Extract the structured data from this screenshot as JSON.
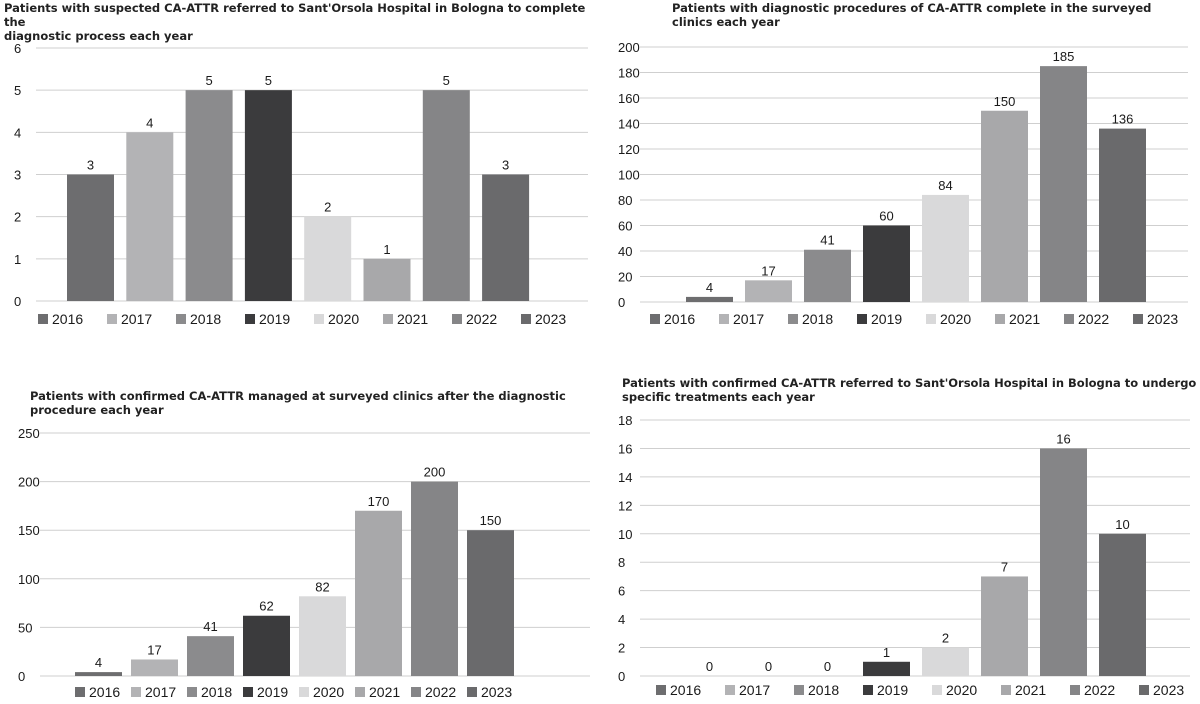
{
  "colors": {
    "2016": "#6d6d6f",
    "2017": "#b3b3b5",
    "2018": "#8b8b8d",
    "2019": "#3b3b3d",
    "2020": "#d9d9da",
    "2021": "#a8a8aa",
    "2022": "#858587",
    "2023": "#6a6a6c",
    "grid": "#cfcfcf",
    "text": "#1a1a1a"
  },
  "chart_data": [
    {
      "type": "bar",
      "title": "Patients with suspected CA-ATTR referred to Sant'Orsola Hospital in Bologna to complete the\ndiagnostic process  each year",
      "categories": [
        "2016",
        "2017",
        "2018",
        "2019",
        "2020",
        "2021",
        "2022",
        "2023"
      ],
      "values": [
        3,
        4,
        5,
        5,
        2,
        1,
        5,
        3
      ],
      "data_labels": [
        "3",
        "4",
        "5",
        "5",
        "2",
        "1",
        "5",
        "3"
      ],
      "ylim": [
        0,
        6
      ],
      "yticks": [
        0,
        1,
        2,
        3,
        4,
        5,
        6
      ],
      "legend": [
        "2016",
        "2017",
        "2018",
        "2019",
        "2020",
        "2021",
        "2022",
        "2023"
      ],
      "legend_position": "bottom",
      "grid": true
    },
    {
      "type": "bar",
      "title": "Patients with diagnostic procedures of CA-ATTR complete in the surveyed\nclinics each year",
      "categories": [
        "2016",
        "2017",
        "2018",
        "2019",
        "2020",
        "2021",
        "2022",
        "2023"
      ],
      "values": [
        4,
        17,
        41,
        60,
        84,
        150,
        185,
        136
      ],
      "data_labels": [
        "4",
        "17",
        "41",
        "60",
        "84",
        "150",
        "185",
        "136"
      ],
      "ylim": [
        0,
        200
      ],
      "yticks": [
        0,
        20,
        40,
        60,
        80,
        100,
        120,
        140,
        160,
        180,
        200
      ],
      "legend": [
        "2016",
        "2017",
        "2018",
        "2019",
        "2020",
        "2021",
        "2022",
        "2023"
      ],
      "legend_position": "bottom",
      "grid": true
    },
    {
      "type": "bar",
      "title": "Patients with confirmed CA-ATTR managed at surveyed clinics after the diagnostic\nprocedure each year",
      "categories": [
        "2016",
        "2017",
        "2018",
        "2019",
        "2020",
        "2021",
        "2022",
        "2023"
      ],
      "values": [
        4,
        17,
        41,
        62,
        82,
        170,
        200,
        150
      ],
      "data_labels": [
        "4",
        "17",
        "41",
        "62",
        "82",
        "170",
        "200",
        "150"
      ],
      "ylim": [
        0,
        250
      ],
      "yticks": [
        0,
        50,
        100,
        150,
        200,
        250
      ],
      "legend": [
        "2016",
        "2017",
        "2018",
        "2019",
        "2020",
        "2021",
        "2022",
        "2023"
      ],
      "legend_position": "bottom",
      "grid": true
    },
    {
      "type": "bar",
      "title": "Patients with confirmed CA-ATTR referred to Sant'Orsola Hospital in Bologna to undergo\nspecific treatments each year",
      "categories": [
        "2016",
        "2017",
        "2018",
        "2019",
        "2020",
        "2021",
        "2022",
        "2023"
      ],
      "values": [
        0,
        0,
        0,
        1,
        2,
        7,
        16,
        10
      ],
      "data_labels": [
        "0",
        "0",
        "0",
        "1",
        "2",
        "7",
        "16",
        "10"
      ],
      "ylim": [
        0,
        18
      ],
      "yticks": [
        0,
        2,
        4,
        6,
        8,
        10,
        12,
        14,
        16,
        18
      ],
      "legend": [
        "2016",
        "2017",
        "2018",
        "2019",
        "2020",
        "2021",
        "2022",
        "2023"
      ],
      "legend_position": "bottom",
      "grid": true
    }
  ]
}
